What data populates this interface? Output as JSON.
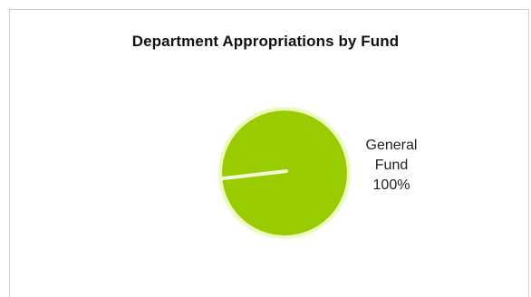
{
  "chart_data": {
    "type": "pie",
    "title": "Department Appropriations  by Fund",
    "slices": [
      {
        "label_lines": [
          "General",
          "Fund",
          "100%"
        ],
        "value": 100,
        "color": "#99cc00"
      }
    ],
    "legend": "none"
  }
}
